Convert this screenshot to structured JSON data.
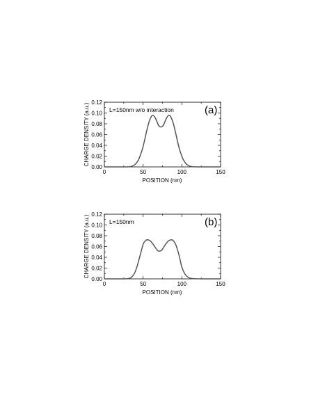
{
  "chart_data": [
    {
      "type": "line",
      "panel_label": "(a)",
      "annotation": "L=150nm w/o interaction",
      "xlabel": "POSITION (nm)",
      "ylabel": "CHARGE DENSITY (a.u.)",
      "xlim": [
        0,
        150
      ],
      "ylim": [
        0,
        0.12
      ],
      "xticks": [
        "0",
        "50",
        "100",
        "150"
      ],
      "yticks": [
        "0.00",
        "0.02",
        "0.04",
        "0.06",
        "0.08",
        "0.10",
        "0.12"
      ],
      "grid": false,
      "line_color": "#555555",
      "series": [
        {
          "x": [
            0,
            28,
            32,
            36,
            40,
            44,
            48,
            50,
            52,
            54,
            56,
            58,
            60,
            62,
            64,
            66,
            68,
            70,
            72,
            74,
            76,
            78,
            80,
            82,
            84,
            86,
            88,
            90,
            92,
            94,
            96,
            98,
            100,
            102,
            106,
            110,
            114,
            118,
            122,
            150
          ],
          "y": [
            0,
            0,
            0.0003,
            0.0015,
            0.005,
            0.013,
            0.028,
            0.038,
            0.05,
            0.063,
            0.075,
            0.085,
            0.092,
            0.0955,
            0.0945,
            0.09,
            0.0835,
            0.077,
            0.0745,
            0.0745,
            0.077,
            0.0835,
            0.09,
            0.0945,
            0.0955,
            0.092,
            0.085,
            0.075,
            0.063,
            0.05,
            0.038,
            0.028,
            0.02,
            0.013,
            0.005,
            0.0015,
            0.0003,
            0.0001,
            0,
            0
          ]
        }
      ]
    },
    {
      "type": "line",
      "panel_label": "(b)",
      "annotation": "L=150nm",
      "xlabel": "POSITION (nm)",
      "ylabel": "CHARGE DENSITY (a.u.)",
      "xlim": [
        0,
        150
      ],
      "ylim": [
        0,
        0.12
      ],
      "xticks": [
        "0",
        "50",
        "100",
        "150"
      ],
      "yticks": [
        "0.00",
        "0.02",
        "0.04",
        "0.06",
        "0.08",
        "0.10",
        "0.12"
      ],
      "grid": false,
      "line_color": "#555555",
      "series": [
        {
          "x": [
            0,
            26,
            30,
            34,
            38,
            42,
            46,
            50,
            52,
            54,
            56,
            58,
            60,
            62,
            64,
            66,
            68,
            70,
            72,
            74,
            76,
            78,
            80,
            82,
            84,
            86,
            88,
            90,
            92,
            94,
            96,
            98,
            100,
            104,
            108,
            112,
            116,
            120,
            124,
            150
          ],
          "y": [
            0,
            0,
            0.0005,
            0.002,
            0.008,
            0.022,
            0.043,
            0.064,
            0.069,
            0.072,
            0.0725,
            0.0715,
            0.0695,
            0.066,
            0.062,
            0.0575,
            0.0535,
            0.0515,
            0.0515,
            0.0535,
            0.0575,
            0.062,
            0.066,
            0.0695,
            0.0715,
            0.0725,
            0.072,
            0.069,
            0.064,
            0.056,
            0.046,
            0.034,
            0.022,
            0.009,
            0.003,
            0.001,
            0.0003,
            0.0001,
            0,
            0
          ]
        }
      ]
    }
  ]
}
